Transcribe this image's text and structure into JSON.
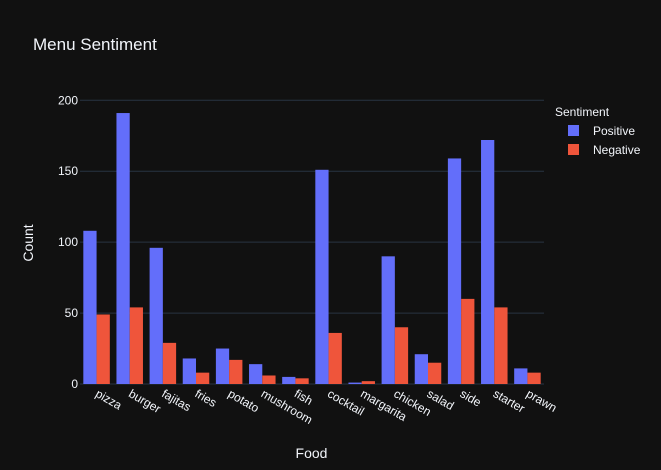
{
  "chart_data": {
    "type": "bar",
    "title": "Menu Sentiment",
    "xlabel": "Food",
    "ylabel": "Count",
    "ylim": [
      0,
      215
    ],
    "yticks": [
      0,
      50,
      100,
      150,
      200
    ],
    "grid": true,
    "legend_title": "Sentiment",
    "legend_position": "top-right",
    "categories": [
      "pizza",
      "burger",
      "fajitas",
      "fries",
      "potato",
      "mushroom",
      "fish",
      "cocktail",
      "margarita",
      "chicken",
      "salad",
      "side",
      "starter",
      "prawn"
    ],
    "series": [
      {
        "name": "Positive",
        "color": "#636efa",
        "values": [
          108,
          191,
          96,
          18,
          25,
          14,
          5,
          151,
          1,
          90,
          21,
          159,
          172,
          11
        ]
      },
      {
        "name": "Negative",
        "color": "#ef553b",
        "values": [
          49,
          54,
          29,
          8,
          17,
          6,
          4,
          36,
          2,
          40,
          15,
          60,
          54,
          8
        ]
      }
    ]
  }
}
